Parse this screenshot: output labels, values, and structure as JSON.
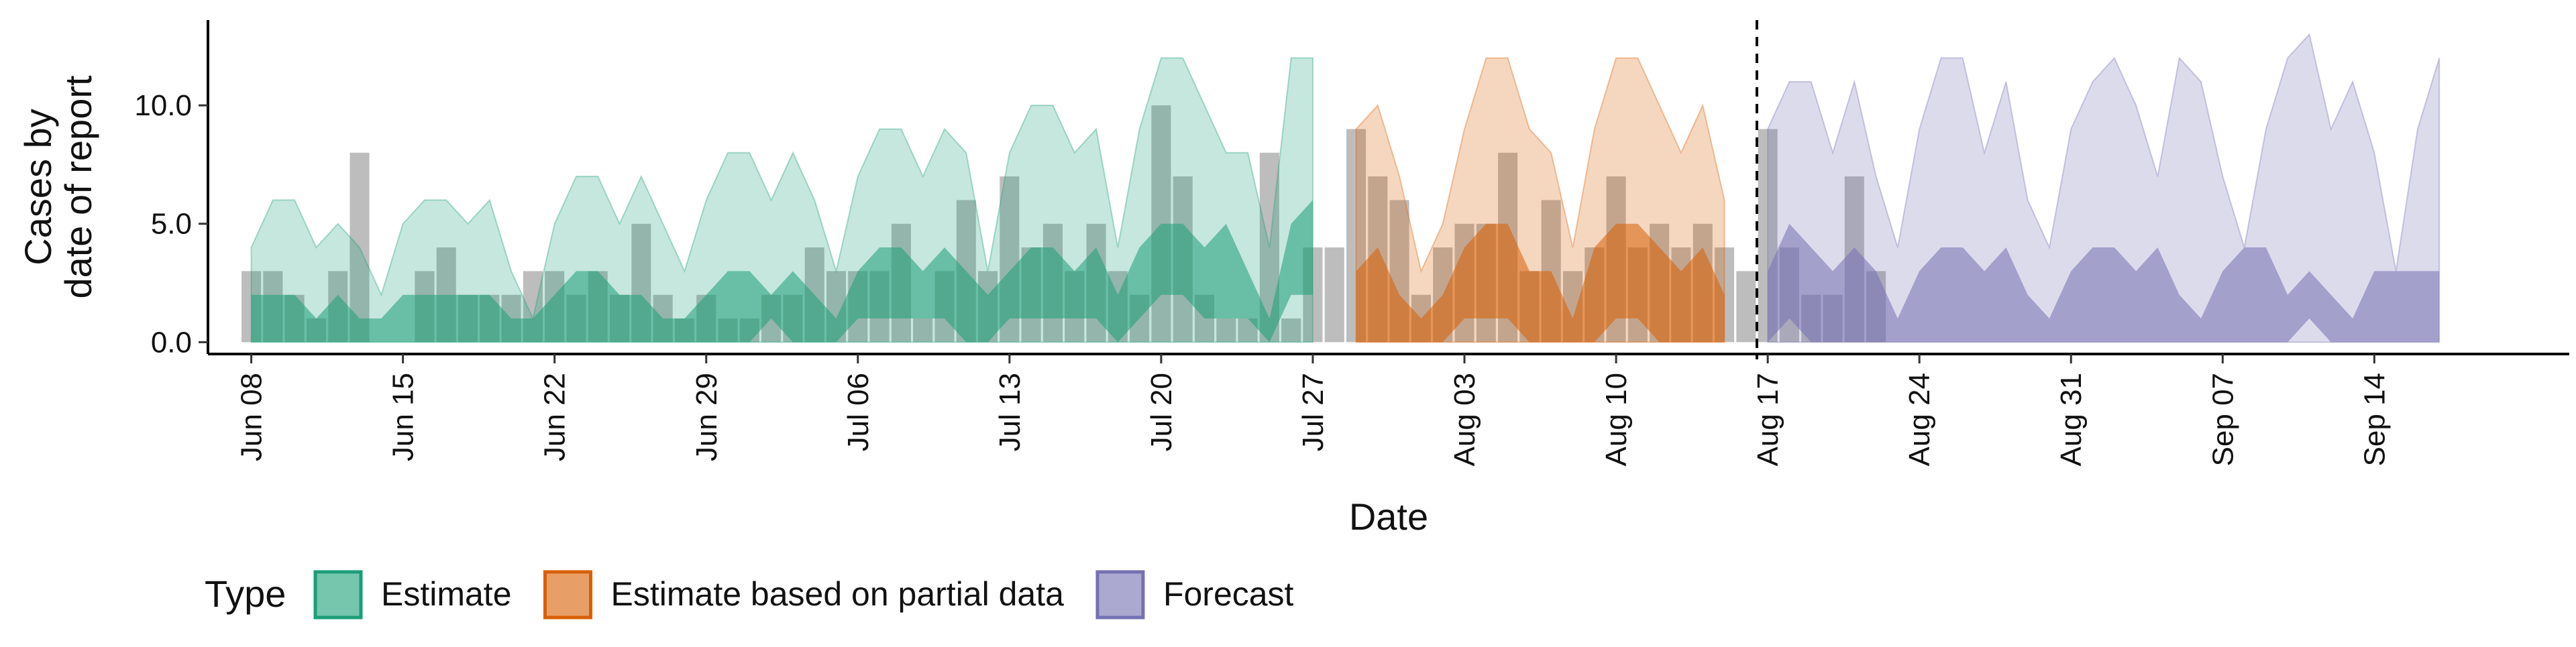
{
  "chart_data": {
    "type": "area",
    "xlabel": "Date",
    "ylabel_lines": [
      "Cases by",
      "date of report"
    ],
    "ylim": [
      -0.5,
      13.6
    ],
    "xlim": [
      "2020-06-06T00:00",
      "2020-09-23T00:00"
    ],
    "y_ticks": [
      {
        "value": 0,
        "label": "0.0"
      },
      {
        "value": 5,
        "label": "5.0"
      },
      {
        "value": 10,
        "label": "10.0"
      }
    ],
    "x_ticks": [
      {
        "date": "2020-06-08",
        "label": "Jun 08"
      },
      {
        "date": "2020-06-15",
        "label": "Jun 15"
      },
      {
        "date": "2020-06-22",
        "label": "Jun 22"
      },
      {
        "date": "2020-06-29",
        "label": "Jun 29"
      },
      {
        "date": "2020-07-06",
        "label": "Jul 06"
      },
      {
        "date": "2020-07-13",
        "label": "Jul 13"
      },
      {
        "date": "2020-07-20",
        "label": "Jul 20"
      },
      {
        "date": "2020-07-27",
        "label": "Jul 27"
      },
      {
        "date": "2020-08-03",
        "label": "Aug 03"
      },
      {
        "date": "2020-08-10",
        "label": "Aug 10"
      },
      {
        "date": "2020-08-17",
        "label": "Aug 17"
      },
      {
        "date": "2020-08-24",
        "label": "Aug 24"
      },
      {
        "date": "2020-08-31",
        "label": "Aug 31"
      },
      {
        "date": "2020-09-07",
        "label": "Sep 07"
      },
      {
        "date": "2020-09-14",
        "label": "Sep 14"
      }
    ],
    "forecast_line_date": "2020-08-16T12:00",
    "legend": {
      "title": "Type",
      "position": "bottom",
      "entries": [
        {
          "name": "Estimate",
          "fill": "#1b9e77",
          "stroke": "#1b9e77"
        },
        {
          "name": "Estimate based on partial data",
          "fill": "#d95f02",
          "stroke": "#d95f02"
        },
        {
          "name": "Forecast",
          "fill": "#7570b3",
          "stroke": "#7570b3"
        }
      ]
    },
    "colors": {
      "estimate": "#1b9e77",
      "partial": "#d95f02",
      "forecast": "#7570b3",
      "bars": "#9a9a9a"
    },
    "bars": {
      "start_date": "2020-06-08",
      "values": [
        3,
        3,
        2,
        1,
        3,
        8,
        0,
        0,
        3,
        4,
        2,
        2,
        2,
        3,
        3,
        2,
        3,
        2,
        5,
        2,
        1,
        2,
        1,
        1,
        2,
        2,
        4,
        3,
        3,
        3,
        5,
        1,
        3,
        6,
        3,
        7,
        4,
        5,
        3,
        5,
        3,
        2,
        10,
        7,
        2,
        1,
        1,
        8,
        1,
        4,
        4,
        9,
        7,
        6,
        2,
        4,
        5,
        5,
        8,
        3,
        6,
        3,
        4,
        7,
        4,
        5,
        4,
        5,
        4,
        3,
        9,
        4,
        2,
        2,
        7,
        3
      ]
    },
    "series": [
      {
        "name": "Estimate",
        "start_date": "2020-06-08",
        "outer_upper": [
          4,
          6,
          6,
          4,
          5,
          4,
          2,
          5,
          6,
          6,
          5,
          6,
          3,
          1,
          5,
          7,
          7,
          5,
          7,
          5,
          3,
          6,
          8,
          8,
          6,
          8,
          6,
          3,
          7,
          9,
          9,
          7,
          9,
          8,
          3,
          8,
          10,
          10,
          8,
          9,
          4,
          9,
          12,
          12,
          10,
          8,
          8,
          4,
          12,
          12
        ],
        "outer_lower": [
          0,
          0,
          0,
          0,
          0,
          0,
          0,
          0,
          0,
          0,
          0,
          0,
          0,
          0,
          0,
          0,
          0,
          0,
          0,
          0,
          0,
          0,
          0,
          0,
          0,
          0,
          0,
          0,
          0,
          0,
          0,
          0,
          0,
          0,
          0,
          0,
          0,
          0,
          0,
          0,
          0,
          0,
          0,
          0,
          0,
          0,
          0,
          0,
          0,
          0
        ],
        "inner_upper": [
          2,
          2,
          2,
          1,
          2,
          1,
          1,
          2,
          2,
          2,
          2,
          2,
          1,
          1,
          2,
          3,
          3,
          2,
          2,
          1,
          1,
          2,
          3,
          3,
          2,
          3,
          2,
          1,
          3,
          4,
          4,
          3,
          4,
          3,
          2,
          3,
          4,
          4,
          3,
          4,
          2,
          4,
          5,
          5,
          4,
          5,
          3,
          1,
          5,
          6
        ],
        "inner_lower": [
          0,
          0,
          0,
          0,
          0,
          0,
          0,
          0,
          0,
          0,
          0,
          0,
          0,
          0,
          0,
          0,
          0,
          0,
          0,
          0,
          0,
          0,
          0,
          0,
          1,
          0,
          0,
          0,
          1,
          1,
          1,
          1,
          1,
          0,
          0,
          1,
          1,
          1,
          1,
          1,
          0,
          1,
          2,
          2,
          1,
          1,
          1,
          0,
          2,
          2
        ]
      },
      {
        "name": "Estimate based on partial data",
        "start_date": "2020-07-29",
        "outer_upper": [
          9,
          10,
          7,
          3,
          5,
          9,
          12,
          12,
          9,
          8,
          4,
          9,
          12,
          12,
          10,
          8,
          10,
          6
        ],
        "outer_lower": [
          0,
          0,
          0,
          0,
          0,
          0,
          0,
          0,
          0,
          0,
          0,
          0,
          0,
          0,
          0,
          0,
          0,
          0
        ],
        "inner_upper": [
          3,
          4,
          2,
          1,
          2,
          4,
          5,
          5,
          3,
          3,
          1,
          4,
          5,
          5,
          4,
          3,
          4,
          2
        ],
        "inner_lower": [
          0,
          0,
          0,
          0,
          0,
          1,
          1,
          1,
          0,
          0,
          0,
          0,
          1,
          1,
          0,
          0,
          0,
          0
        ]
      },
      {
        "name": "Forecast",
        "start_date": "2020-08-17",
        "outer_upper": [
          9,
          11,
          11,
          8,
          11,
          7,
          4,
          9,
          12,
          12,
          8,
          11,
          6,
          4,
          9,
          11,
          12,
          10,
          7,
          12,
          11,
          7,
          4,
          9,
          12,
          13,
          9,
          11,
          8,
          3,
          9,
          12
        ],
        "outer_lower": [
          0,
          0,
          0,
          0,
          0,
          0,
          0,
          0,
          0,
          0,
          0,
          0,
          0,
          0,
          0,
          0,
          0,
          0,
          0,
          0,
          0,
          0,
          0,
          0,
          0,
          0,
          0,
          0,
          0,
          0,
          0,
          0
        ],
        "inner_upper": [
          3,
          5,
          4,
          3,
          4,
          3,
          1,
          3,
          4,
          4,
          3,
          4,
          2,
          1,
          3,
          4,
          4,
          3,
          4,
          2,
          1,
          3,
          4,
          4,
          2,
          3,
          2,
          1,
          3,
          3,
          3,
          3
        ],
        "inner_lower": [
          0,
          1,
          0,
          0,
          0,
          0,
          0,
          0,
          0,
          0,
          0,
          0,
          0,
          0,
          0,
          0,
          0,
          0,
          0,
          0,
          0,
          0,
          0,
          0,
          0,
          1,
          0,
          0,
          0,
          0,
          0,
          0
        ]
      }
    ]
  }
}
